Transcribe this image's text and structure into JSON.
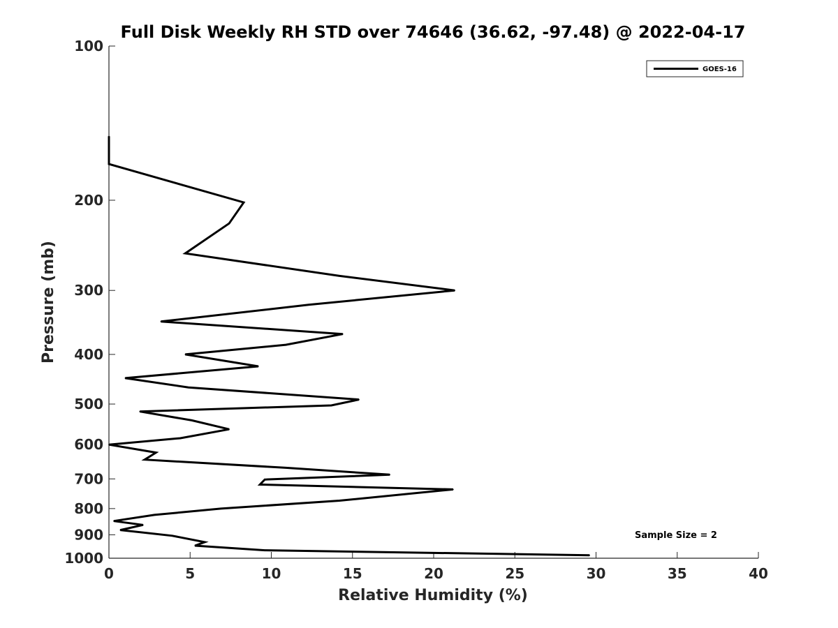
{
  "chart_data": {
    "type": "line",
    "title": "Full Disk Weekly RH STD over 74646 (36.62, -97.48) @ 2022-04-17",
    "xlabel": "Relative Humidity (%)",
    "ylabel": "Pressure (mb)",
    "xlim": [
      0,
      40
    ],
    "ylim": [
      100,
      1000
    ],
    "yscale": "log",
    "y_reversed": true,
    "grid": false,
    "xticks": [
      0,
      5,
      10,
      15,
      20,
      25,
      30,
      35,
      40
    ],
    "yticks": [
      100,
      200,
      300,
      400,
      500,
      600,
      700,
      800,
      900,
      1000
    ],
    "legend": {
      "position": "top-right",
      "entries": [
        "GOES-16"
      ]
    },
    "annotation": "Sample Size = 2",
    "series": [
      {
        "name": "GOES-16",
        "color": "#000000",
        "x": [
          0,
          0,
          8.3,
          7.4,
          4.7,
          14.2,
          21.3,
          12.3,
          3.2,
          14.4,
          10.9,
          4.7,
          9.2,
          1.0,
          4.9,
          15.4,
          13.7,
          1.9,
          5.1,
          7.4,
          4.4,
          0.0,
          2.9,
          2.2,
          10.9,
          17.3,
          9.6,
          9.3,
          21.2,
          14.2,
          6.9,
          2.8,
          0.3,
          2.1,
          0.7,
          3.9,
          5.9,
          5.3,
          9.6,
          29.6
        ],
        "y": [
          150,
          170,
          202,
          222,
          254,
          281,
          300,
          320,
          345,
          365,
          383,
          400,
          422,
          445,
          464,
          490,
          503,
          517,
          538,
          560,
          583,
          600,
          622,
          642,
          666,
          687,
          702,
          718,
          734,
          772,
          800,
          823,
          846,
          861,
          881,
          904,
          930,
          945,
          965,
          987
        ]
      }
    ]
  }
}
